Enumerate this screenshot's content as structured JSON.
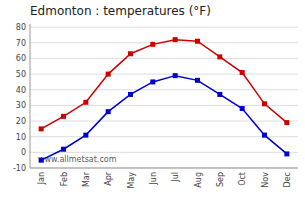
{
  "chart_data": {
    "type": "line",
    "title": "Edmonton : temperatures (°F)",
    "categories": [
      "Jan",
      "Feb",
      "Mar",
      "Apr",
      "May",
      "Jun",
      "Jul",
      "Aug",
      "Sep",
      "Oct",
      "Nov",
      "Dec"
    ],
    "series": [
      {
        "color": "#cc0000",
        "marker": "square",
        "values": [
          15,
          23,
          32,
          50,
          63,
          69,
          72,
          71,
          61,
          51,
          31,
          19
        ]
      },
      {
        "color": "#0000cc",
        "marker": "square",
        "values": [
          -5,
          2,
          11,
          26,
          37,
          45,
          49,
          46,
          37,
          28,
          11,
          -1
        ]
      }
    ],
    "ylim": [
      -10,
      82
    ],
    "yticks": [
      -10,
      0,
      10,
      20,
      30,
      40,
      50,
      60,
      70,
      80
    ],
    "grid": true,
    "annotations": [
      "www.allmetsat.com"
    ]
  }
}
